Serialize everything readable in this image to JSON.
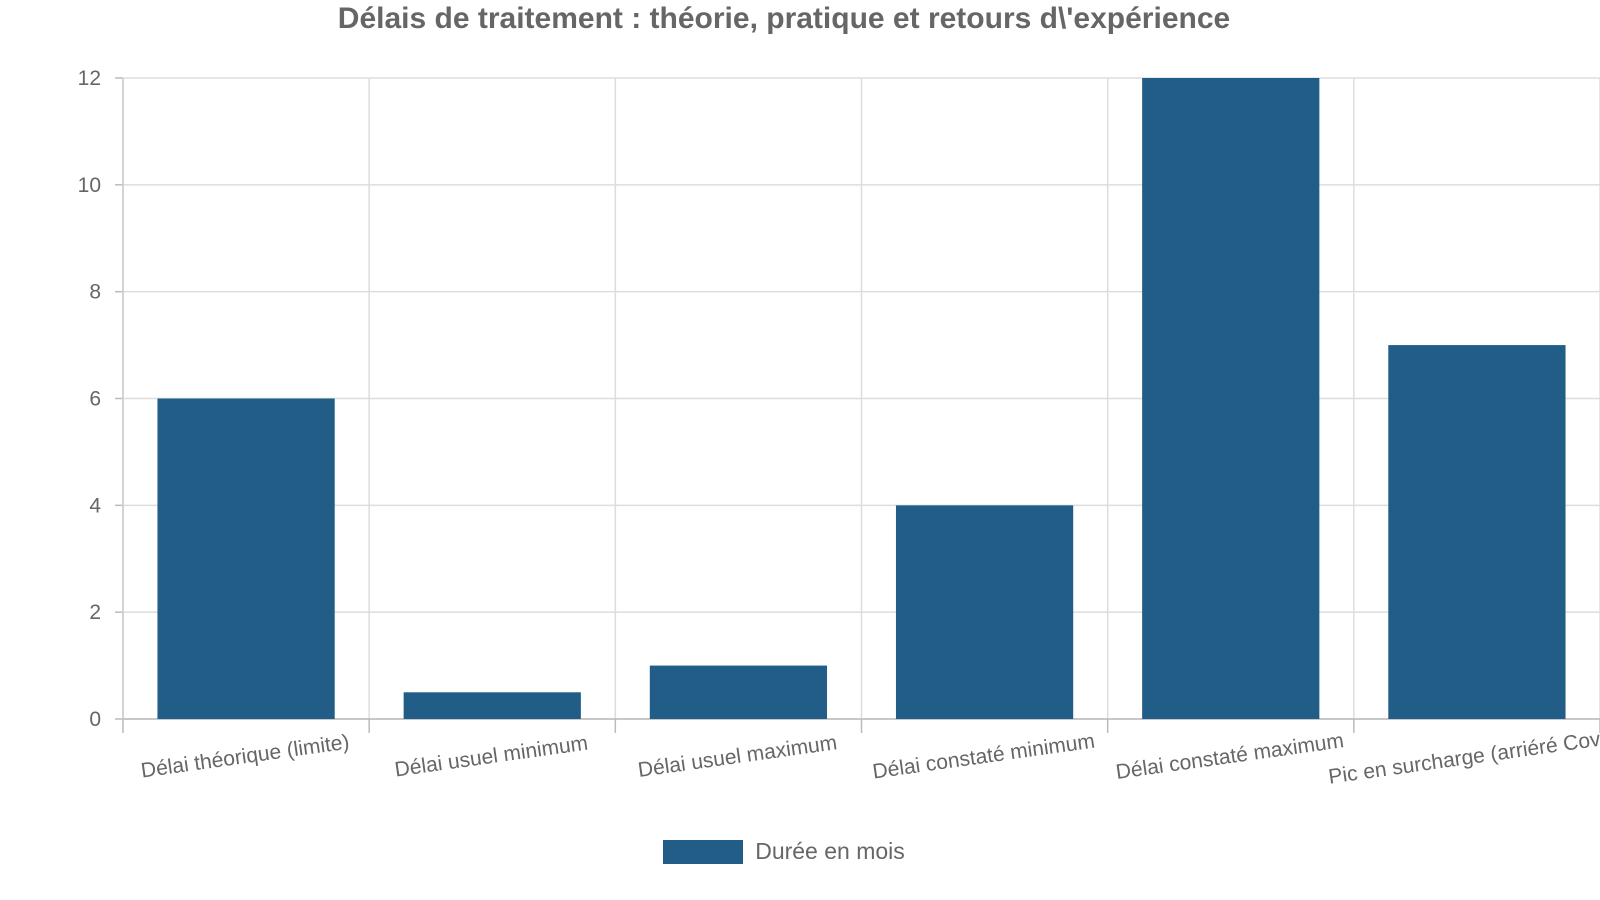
{
  "chart_data": {
    "type": "bar",
    "title": "Délais de traitement : théorie, pratique et retours d\\'expérience",
    "categories": [
      "Délai théorique (limite)",
      "Délai usuel minimum",
      "Délai usuel maximum",
      "Délai constaté minimum",
      "Délai constaté maximum",
      "Pic en surcharge (arriéré Covid)"
    ],
    "series": [
      {
        "name": "Durée en mois",
        "values": [
          6,
          0.5,
          1,
          4,
          12,
          7
        ],
        "color": "#215d87"
      }
    ],
    "xlabel": "",
    "ylabel": "",
    "ylim": [
      0,
      12
    ],
    "yticks": [
      0,
      2,
      4,
      6,
      8,
      10,
      12
    ],
    "grid": true,
    "legend_position": "bottom-center"
  }
}
